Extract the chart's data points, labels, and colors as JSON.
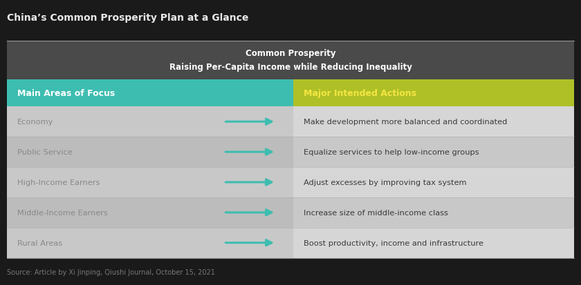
{
  "title": "China’s Common Prosperity Plan at a Glance",
  "title_color": "#e8e8e8",
  "background_color": "#1a1a1a",
  "header_bg": "#4a4a4a",
  "header_text": "Common Prosperity\nRaising Per-Capita Income while Reducing Inequality",
  "header_text_color": "#ffffff",
  "col1_header": "Main Areas of Focus",
  "col2_header": "Major Intended Actions",
  "col1_header_bg": "#3dbdb0",
  "col2_header_bg": "#afc027",
  "col1_header_text_color": "#ffffff",
  "col2_header_text_color": "#f5e642",
  "rows": [
    {
      "area": "Economy",
      "action": "Make development more balanced and coordinated",
      "row_bg_light": "#d6d6d6",
      "row_bg_dark": "#c8c8c8"
    },
    {
      "area": "Public Service",
      "action": "Equalize services to help low-income groups",
      "row_bg_light": "#c8c8c8",
      "row_bg_dark": "#bcbcbc"
    },
    {
      "area": "High-Income Earners",
      "action": "Adjust excesses by improving tax system",
      "row_bg_light": "#d6d6d6",
      "row_bg_dark": "#c8c8c8"
    },
    {
      "area": "Middle-Income Earners",
      "action": "Increase size of middle-income class",
      "row_bg_light": "#c8c8c8",
      "row_bg_dark": "#bcbcbc"
    },
    {
      "area": "Rural Areas",
      "action": "Boost productivity, income and infrastructure",
      "row_bg_light": "#d6d6d6",
      "row_bg_dark": "#c8c8c8"
    }
  ],
  "arrow_color": "#3dbdb0",
  "area_text_color": "#888888",
  "action_text_color": "#3a3a3a",
  "source_text": "Source: Article by Xi Jinping, Qiushi Journal, October 15, 2021",
  "source_text_color": "#777777",
  "divider_color": "#aaaaaa",
  "col_split": 0.505
}
